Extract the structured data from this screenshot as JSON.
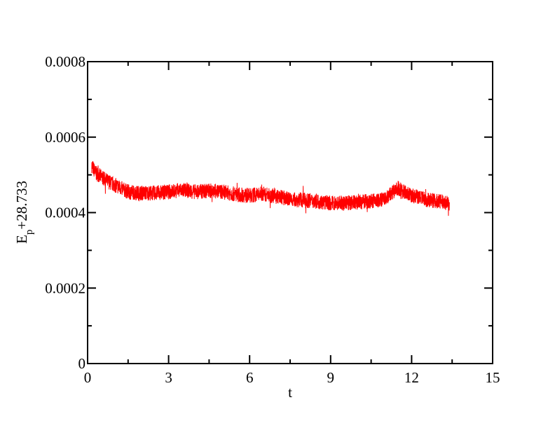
{
  "chart_data": {
    "type": "line",
    "title": "",
    "xlabel": "t",
    "ylabel_main": "E",
    "ylabel_sub": "p",
    "ylabel_rest": "+28.733",
    "xlim": [
      0,
      15
    ],
    "ylim": [
      0,
      0.0008
    ],
    "x_ticks": [
      0,
      3,
      6,
      9,
      12,
      15
    ],
    "x_tick_labels": [
      "0",
      "3",
      "6",
      "9",
      "12",
      "15"
    ],
    "y_ticks": [
      0,
      0.0002,
      0.0004,
      0.0006,
      0.0008
    ],
    "y_tick_labels": [
      "0",
      "0.0002",
      "0.0004",
      "0.0006",
      "0.0008"
    ],
    "grid": false,
    "legend": "none",
    "series": [
      {
        "color": "#ff0000",
        "x": [
          0.15,
          0.3,
          0.5,
          0.7,
          0.9,
          1.1,
          1.3,
          1.5,
          1.8,
          2.1,
          2.5,
          3.0,
          3.5,
          4.0,
          4.5,
          5.0,
          5.5,
          6.0,
          6.5,
          7.0,
          7.5,
          8.0,
          8.5,
          9.0,
          9.5,
          10.0,
          10.5,
          11.0,
          11.5,
          12.0,
          12.5,
          13.0,
          13.4
        ],
        "y": [
          0.000525,
          0.000505,
          0.000495,
          0.000485,
          0.000477,
          0.00047,
          0.000462,
          0.000455,
          0.000452,
          0.000452,
          0.000452,
          0.000455,
          0.00046,
          0.000455,
          0.000458,
          0.000455,
          0.000448,
          0.000445,
          0.00045,
          0.000443,
          0.000435,
          0.000433,
          0.00043,
          0.000425,
          0.000425,
          0.000428,
          0.00043,
          0.000435,
          0.000465,
          0.000445,
          0.000435,
          0.00043,
          0.000425
        ],
        "noise_amplitude": 2e-05
      }
    ]
  }
}
